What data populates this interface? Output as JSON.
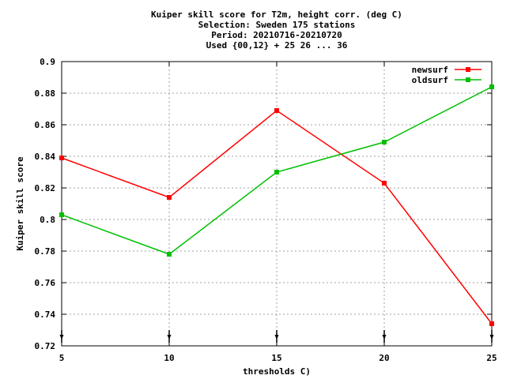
{
  "chart_data": {
    "type": "line",
    "title_lines": [
      "Kuiper skill score  for T2m, height corr. (deg C)",
      "Selection: Sweden    175 stations",
      "Period: 20210716-20210720",
      "Used {00,12} + 25 26 ... 36"
    ],
    "xlabel": "thresholds C)",
    "ylabel": "Kuiper skill score",
    "x": [
      5,
      10,
      15,
      20,
      25
    ],
    "xticks": [
      "5",
      "10",
      "15",
      "20",
      "25"
    ],
    "yticks": [
      "0.72",
      "0.74",
      "0.76",
      "0.78",
      "0.8",
      "0.82",
      "0.84",
      "0.86",
      "0.88",
      "0.9"
    ],
    "xlim": [
      5,
      25
    ],
    "ylim": [
      0.72,
      0.9
    ],
    "grid": true,
    "legend_position": "top-right",
    "series": [
      {
        "name": "newsurf",
        "color": "#ff0000",
        "values": [
          0.839,
          0.814,
          0.869,
          0.823,
          0.734
        ]
      },
      {
        "name": "oldsurf",
        "color": "#00c000",
        "values": [
          0.803,
          0.778,
          0.83,
          0.849,
          0.884
        ]
      }
    ]
  }
}
